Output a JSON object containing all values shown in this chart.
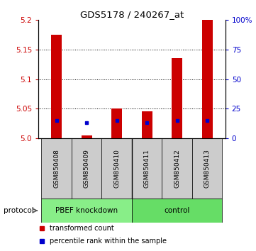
{
  "title": "GDS5178 / 240267_at",
  "samples": [
    "GSM850408",
    "GSM850409",
    "GSM850410",
    "GSM850411",
    "GSM850412",
    "GSM850413"
  ],
  "groups": [
    "PBEF knockdown",
    "PBEF knockdown",
    "PBEF knockdown",
    "control",
    "control",
    "control"
  ],
  "transformed_count": [
    5.175,
    5.005,
    5.05,
    5.045,
    5.135,
    5.2
  ],
  "percentile_rank": [
    15,
    13,
    15,
    13,
    15,
    15
  ],
  "ylim_left": [
    5.0,
    5.2
  ],
  "ylim_right": [
    0,
    100
  ],
  "yticks_left": [
    5.0,
    5.05,
    5.1,
    5.15,
    5.2
  ],
  "yticks_right": [
    0,
    25,
    50,
    75,
    100
  ],
  "yticklabels_right": [
    "0",
    "25",
    "50",
    "75",
    "100%"
  ],
  "left_color": "#cc0000",
  "right_color": "#0000cc",
  "bar_bottom": 5.0,
  "sample_bg": "#cccccc",
  "bar_width": 0.35,
  "group_colors": {
    "PBEF knockdown": "#88ee88",
    "control": "#66dd66"
  },
  "protocol_label": "protocol",
  "legend_items": [
    {
      "color": "#cc0000",
      "label": "transformed count"
    },
    {
      "color": "#0000cc",
      "label": "percentile rank within the sample"
    }
  ]
}
